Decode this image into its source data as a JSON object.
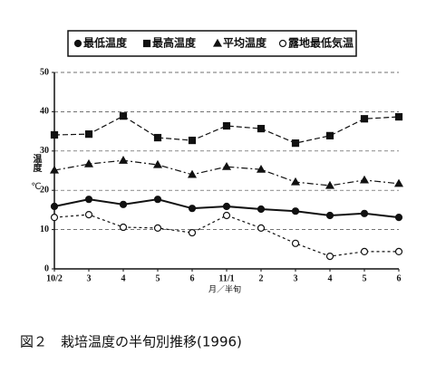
{
  "chart_data": {
    "type": "line",
    "categories": [
      "10/2",
      "3",
      "4",
      "5",
      "6",
      "11/1",
      "2",
      "3",
      "4",
      "5",
      "6"
    ],
    "x_label": "月／半旬",
    "y_label": "温度",
    "y_unit": "℃",
    "caption": "図２　栽培温度の半旬別推移(1996)",
    "ylim": [
      0,
      50
    ],
    "yticks": [
      0,
      10,
      20,
      30,
      40,
      50
    ],
    "grid": true,
    "series": [
      {
        "name": "最低温度",
        "color": "#111111",
        "marker": "circle-filled",
        "dash": "solid",
        "values": [
          15.9,
          17.7,
          16.4,
          17.7,
          15.4,
          15.9,
          15.2,
          14.7,
          13.6,
          14.1,
          13.1
        ]
      },
      {
        "name": "最高温度",
        "color": "#111111",
        "marker": "square",
        "dash": "dashed",
        "values": [
          34.1,
          34.3,
          38.9,
          33.4,
          32.7,
          36.4,
          35.7,
          32.0,
          33.9,
          38.2,
          38.7
        ]
      },
      {
        "name": "平均温度",
        "color": "#111111",
        "marker": "triangle",
        "dash": "dashdot",
        "values": [
          25.1,
          26.7,
          27.6,
          26.5,
          24.0,
          26.0,
          25.3,
          22.1,
          21.2,
          22.6,
          21.7
        ]
      },
      {
        "name": "露地最低気温",
        "color": "#111111",
        "marker": "circle-open",
        "dash": "dotted",
        "values": [
          13.1,
          13.8,
          10.6,
          10.4,
          9.2,
          13.6,
          10.4,
          6.5,
          3.2,
          4.4,
          4.4
        ]
      }
    ]
  }
}
